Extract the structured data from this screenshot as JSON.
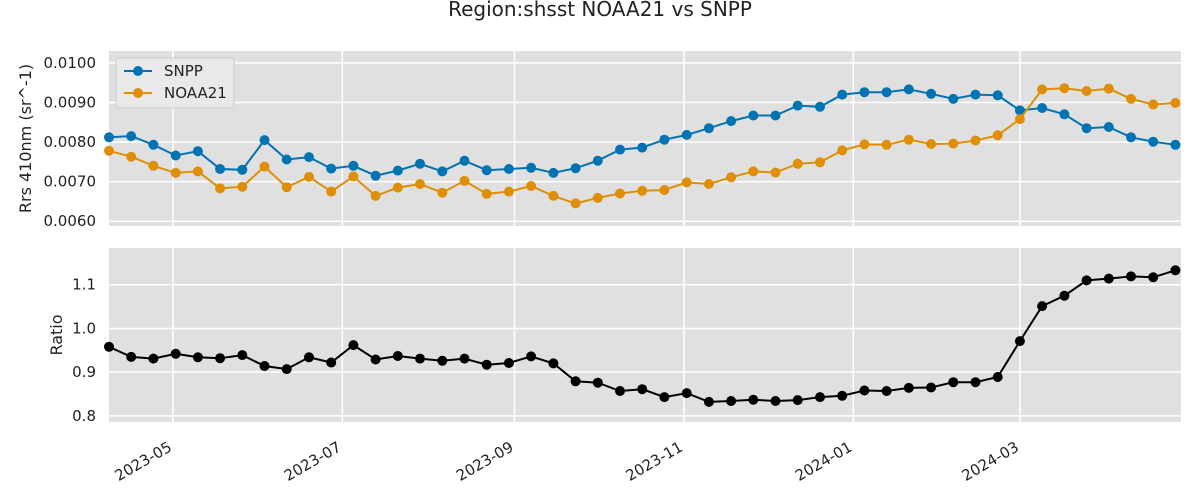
{
  "chart_data": {
    "title": "Region:shsst NOAA21 vs SNPP",
    "x_tick_labels": [
      "2023-05",
      "2023-07",
      "2023-09",
      "2023-11",
      "2024-01",
      "2024-03"
    ],
    "x_tick_dates": [
      "2023-05-01",
      "2023-07-01",
      "2023-09-01",
      "2023-11-01",
      "2024-01-01",
      "2024-03-01"
    ],
    "xlim": [
      "2023-04-08",
      "2024-04-28"
    ],
    "dates": [
      "2023-04-08",
      "2023-04-16",
      "2023-04-24",
      "2023-05-02",
      "2023-05-10",
      "2023-05-18",
      "2023-05-26",
      "2023-06-03",
      "2023-06-11",
      "2023-06-19",
      "2023-06-27",
      "2023-07-05",
      "2023-07-13",
      "2023-07-21",
      "2023-07-29",
      "2023-08-06",
      "2023-08-14",
      "2023-08-22",
      "2023-08-30",
      "2023-09-07",
      "2023-09-15",
      "2023-09-23",
      "2023-10-01",
      "2023-10-09",
      "2023-10-17",
      "2023-10-25",
      "2023-11-02",
      "2023-11-10",
      "2023-11-18",
      "2023-11-26",
      "2023-12-04",
      "2023-12-12",
      "2023-12-20",
      "2023-12-28",
      "2024-01-05",
      "2024-01-13",
      "2024-01-21",
      "2024-01-29",
      "2024-02-06",
      "2024-02-14",
      "2024-02-22",
      "2024-03-01",
      "2024-03-09",
      "2024-03-17",
      "2024-03-25",
      "2024-04-02",
      "2024-04-10",
      "2024-04-18",
      "2024-04-26"
    ],
    "charts": [
      {
        "type": "line",
        "ylabel": "Rrs 410nm (sr^-1)",
        "ylim": [
          0.00588,
          0.0103
        ],
        "y_ticks": [
          0.006,
          0.007,
          0.008,
          0.009,
          0.01
        ],
        "y_tick_labels": [
          "0.0060",
          "0.0070",
          "0.0080",
          "0.0090",
          "0.0100"
        ],
        "grid": true,
        "legend_position": "top-left",
        "series": [
          {
            "name": "SNPP",
            "color": "#0173b2",
            "values": [
              0.00812,
              0.00815,
              0.00793,
              0.00766,
              0.00777,
              0.00732,
              0.0073,
              0.00805,
              0.00756,
              0.00762,
              0.00733,
              0.0074,
              0.00715,
              0.00728,
              0.00745,
              0.00726,
              0.00753,
              0.00729,
              0.00732,
              0.00735,
              0.00722,
              0.00734,
              0.00753,
              0.00781,
              0.00786,
              0.00806,
              0.00818,
              0.00835,
              0.00853,
              0.00867,
              0.00867,
              0.00892,
              0.00889,
              0.0092,
              0.00926,
              0.00926,
              0.00933,
              0.00922,
              0.00909,
              0.0092,
              0.00918,
              0.0088,
              0.00886,
              0.0087,
              0.00835,
              0.00838,
              0.00812,
              0.00801,
              0.00793
            ]
          },
          {
            "name": "NOAA21",
            "color": "#de8f05",
            "values": [
              0.00778,
              0.00763,
              0.0074,
              0.00722,
              0.00726,
              0.00683,
              0.00687,
              0.00738,
              0.00686,
              0.00712,
              0.00675,
              0.00713,
              0.00664,
              0.00685,
              0.00694,
              0.00672,
              0.00702,
              0.00669,
              0.00675,
              0.00689,
              0.00664,
              0.00645,
              0.00659,
              0.0067,
              0.00677,
              0.00679,
              0.00698,
              0.00694,
              0.00711,
              0.00726,
              0.00723,
              0.00745,
              0.00749,
              0.00779,
              0.00794,
              0.00793,
              0.00806,
              0.00795,
              0.00796,
              0.00804,
              0.00817,
              0.00858,
              0.00933,
              0.00936,
              0.00929,
              0.00935,
              0.00909,
              0.00895,
              0.00899
            ]
          }
        ]
      },
      {
        "type": "line",
        "ylabel": "Ratio",
        "ylim": [
          0.786,
          1.184
        ],
        "y_ticks": [
          0.8,
          0.9,
          1.0,
          1.1
        ],
        "y_tick_labels": [
          "0.8",
          "0.9",
          "1.0",
          "1.1"
        ],
        "grid": true,
        "series": [
          {
            "color": "#000000",
            "values": [
              0.958,
              0.935,
              0.931,
              0.942,
              0.934,
              0.932,
              0.939,
              0.914,
              0.907,
              0.934,
              0.922,
              0.962,
              0.929,
              0.937,
              0.931,
              0.926,
              0.931,
              0.917,
              0.921,
              0.936,
              0.92,
              0.879,
              0.876,
              0.857,
              0.861,
              0.843,
              0.852,
              0.832,
              0.834,
              0.837,
              0.834,
              0.836,
              0.843,
              0.846,
              0.858,
              0.857,
              0.864,
              0.865,
              0.877,
              0.877,
              0.889,
              0.971,
              1.051,
              1.075,
              1.11,
              1.114,
              1.119,
              1.117,
              1.133
            ]
          }
        ]
      }
    ]
  }
}
